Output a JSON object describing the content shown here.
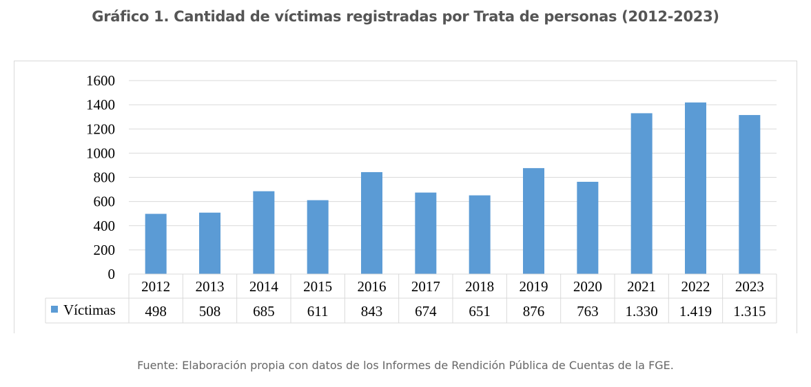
{
  "title": "Gráfico 1. Cantidad de víctimas registradas por Trata de personas (2012-2023)",
  "source": "Fuente: Elaboración propia con datos de los Informes de Rendición Pública de Cuentas de la FGE.",
  "colors": {
    "bar": "#5b9bd5",
    "grid": "#d9d9d9",
    "text": "#000000"
  },
  "chart_data": {
    "type": "bar",
    "categories": [
      "2012",
      "2013",
      "2014",
      "2015",
      "2016",
      "2017",
      "2018",
      "2019",
      "2020",
      "2021",
      "2022",
      "2023"
    ],
    "series": [
      {
        "name": "Víctimas",
        "values": [
          498,
          508,
          685,
          611,
          843,
          674,
          651,
          876,
          763,
          1330,
          1419,
          1315
        ],
        "value_labels": [
          "498",
          "508",
          "685",
          "611",
          "843",
          "674",
          "651",
          "876",
          "763",
          "1.330",
          "1.419",
          "1.315"
        ]
      }
    ],
    "ylim": [
      0,
      1600
    ],
    "yticks": [
      0,
      200,
      400,
      600,
      800,
      1000,
      1200,
      1400,
      1600
    ],
    "grid": true,
    "legend": "data-table-left",
    "data_table": true
  }
}
